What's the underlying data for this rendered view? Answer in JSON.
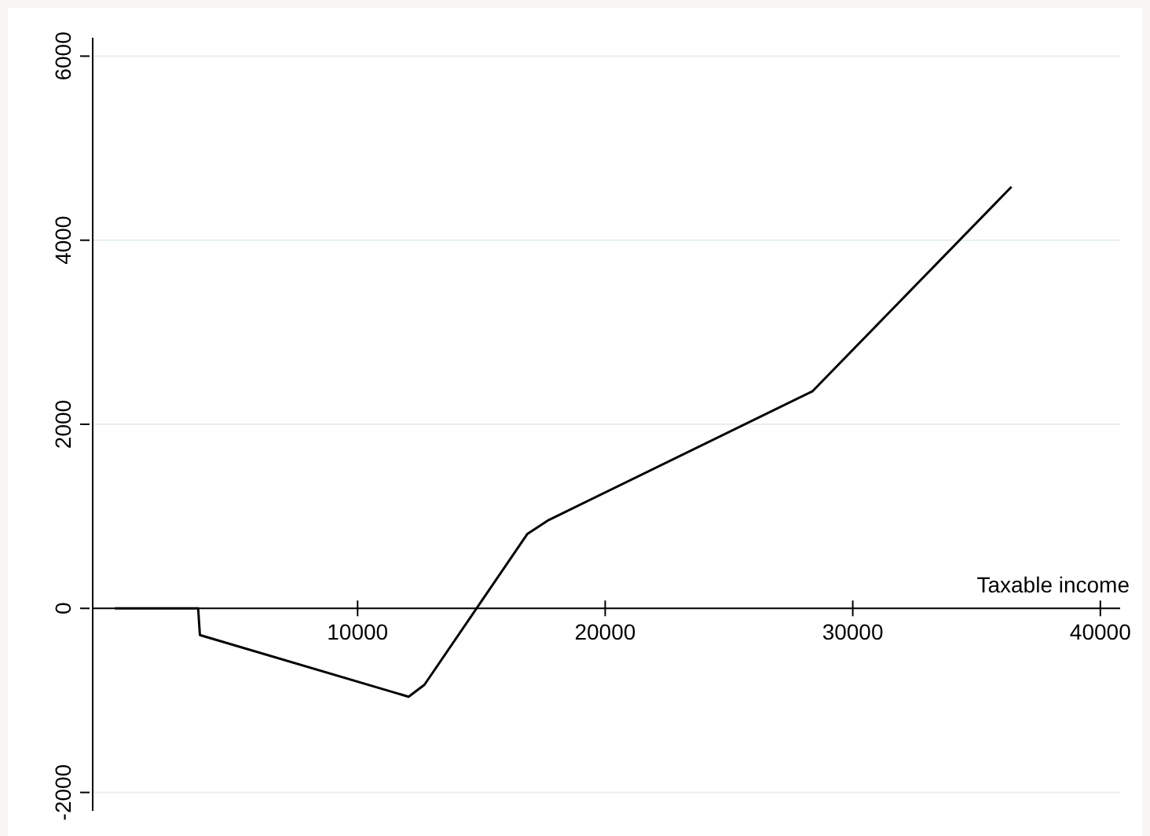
{
  "chart_data": {
    "type": "line",
    "xlabel": "Taxable income",
    "x": [
      200,
      3560,
      3630,
      12060,
      12700,
      16860,
      17720,
      28380,
      36410
    ],
    "series": [
      {
        "color": "#000000",
        "values": [
          0,
          0,
          -290,
          -960,
          -830,
          810,
          960,
          2360,
          4580
        ]
      }
    ],
    "xlim": [
      -700,
      40800
    ],
    "xticks": [
      10000,
      20000,
      30000,
      40000
    ],
    "ylim": [
      -2200,
      6200
    ],
    "yticks": [
      -2000,
      0,
      2000,
      4000,
      6000
    ],
    "grid": "y",
    "marker": "none",
    "line_style": "solid"
  }
}
